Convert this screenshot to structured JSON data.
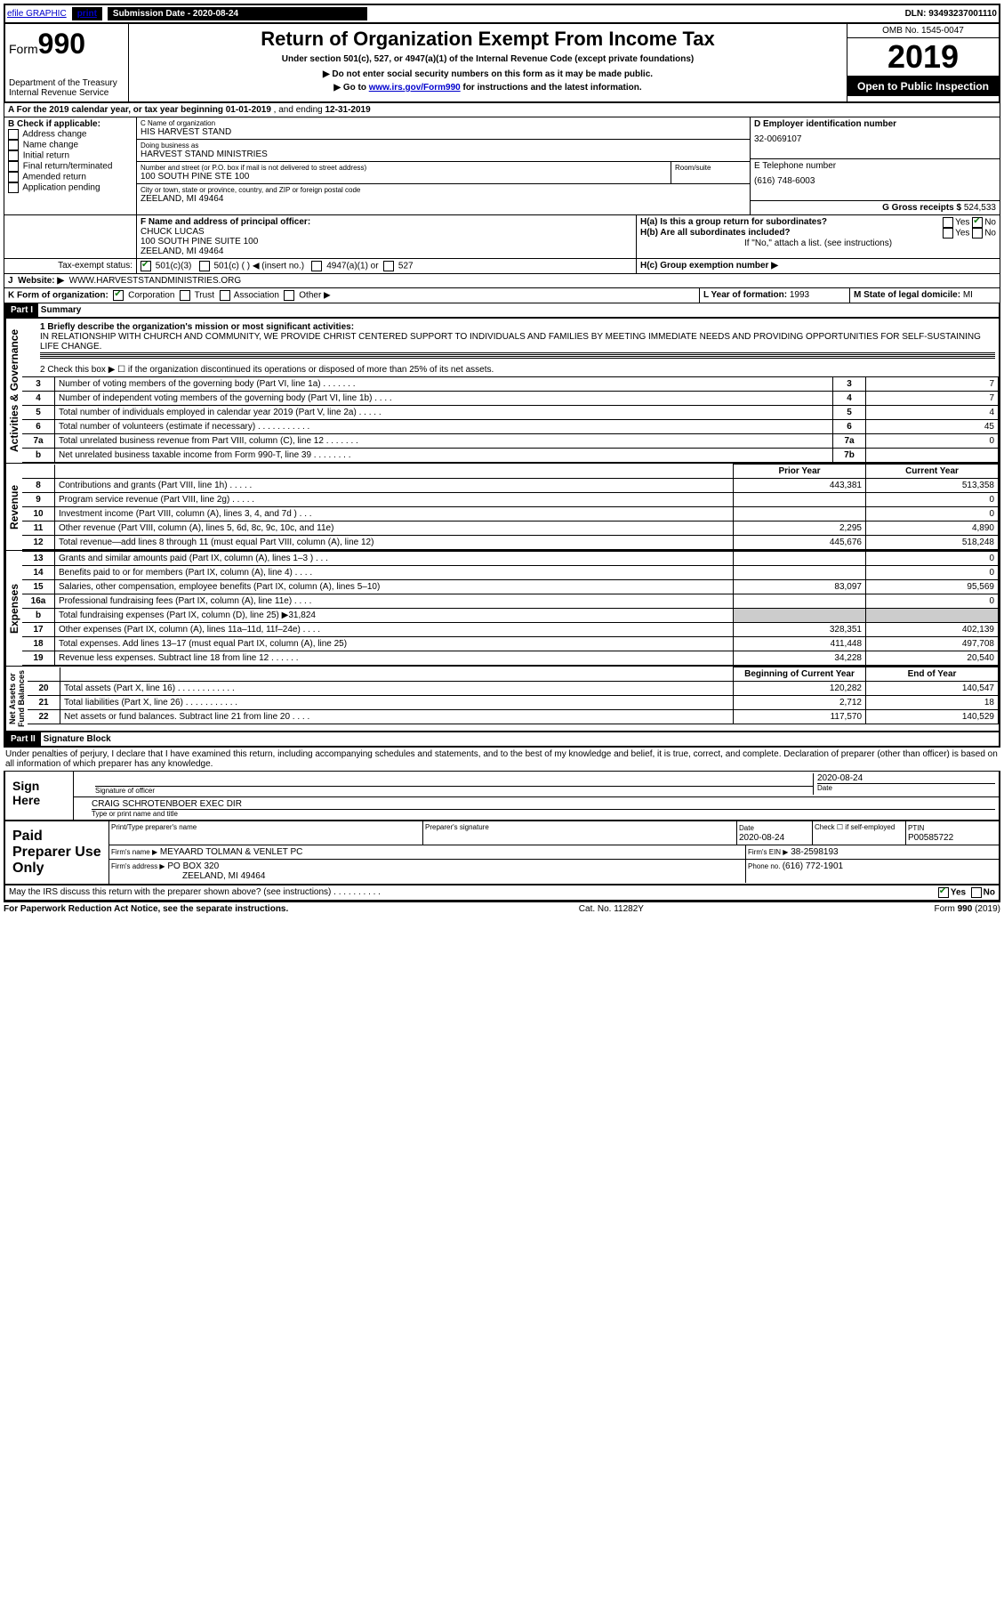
{
  "top": {
    "efile": "efile GRAPHIC",
    "print": "print",
    "sub_label": "Submission Date - 2020-08-24",
    "dln": "DLN: 93493237001110"
  },
  "header": {
    "form_label": "Form",
    "form_num": "990",
    "dept": "Department of the Treasury",
    "irs": "Internal Revenue Service",
    "title": "Return of Organization Exempt From Income Tax",
    "subtitle": "Under section 501(c), 527, or 4947(a)(1) of the Internal Revenue Code (except private foundations)",
    "note1": "▶ Do not enter social security numbers on this form as it may be made public.",
    "note2_pre": "▶ Go to ",
    "note2_link": "www.irs.gov/Form990",
    "note2_post": " for instructions and the latest information.",
    "omb": "OMB No. 1545-0047",
    "year": "2019",
    "inspect": "Open to Public Inspection"
  },
  "period": {
    "label_a": "A For the 2019 calendar year, or tax year beginning ",
    "begin": "01-01-2019",
    "mid": " , and ending ",
    "end": "12-31-2019"
  },
  "blockB": {
    "label": "B Check if applicable:",
    "opts": [
      "Address change",
      "Name change",
      "Initial return",
      "Final return/terminated",
      "Amended return",
      "Application pending"
    ]
  },
  "blockC": {
    "name_label": "C Name of organization",
    "name": "HIS HARVEST STAND",
    "dba_label": "Doing business as",
    "dba": "HARVEST STAND MINISTRIES",
    "addr_label": "Number and street (or P.O. box if mail is not delivered to street address)",
    "room_label": "Room/suite",
    "addr": "100 SOUTH PINE STE 100",
    "city_label": "City or town, state or province, country, and ZIP or foreign postal code",
    "city": "ZEELAND, MI  49464"
  },
  "blockD": {
    "label": "D Employer identification number",
    "val": "32-0069107"
  },
  "blockE": {
    "label": "E Telephone number",
    "val": "(616) 748-6003"
  },
  "blockG": {
    "label": "G Gross receipts $ ",
    "val": "524,533"
  },
  "blockF": {
    "label": "F  Name and address of principal officer:",
    "name": "CHUCK LUCAS",
    "addr1": "100 SOUTH PINE SUITE 100",
    "addr2": "ZEELAND, MI  49464"
  },
  "blockH": {
    "a": "H(a)  Is this a group return for subordinates?",
    "b": "H(b)  Are all subordinates included?",
    "b_note": "If \"No,\" attach a list. (see instructions)",
    "c": "H(c)  Group exemption number ▶"
  },
  "blockI": {
    "label": "Tax-exempt status:",
    "o1": "501(c)(3)",
    "o2": "501(c) (  ) ◀ (insert no.)",
    "o3": "4947(a)(1) or",
    "o4": "527"
  },
  "blockJ": {
    "label": "J",
    "web_label": "Website: ▶",
    "web": "WWW.HARVESTSTANDMINISTRIES.ORG"
  },
  "blockK": {
    "label": "K Form of organization:",
    "opts": [
      "Corporation",
      "Trust",
      "Association",
      "Other ▶"
    ]
  },
  "blockL": {
    "label": "L Year of formation: ",
    "val": "1993"
  },
  "blockM": {
    "label": "M State of legal domicile: ",
    "val": "MI"
  },
  "part1": {
    "header": "Part I",
    "title": "Summary",
    "line1_label": "1  Briefly describe the organization's mission or most significant activities:",
    "line1_text": "IN RELATIONSHIP WITH CHURCH AND COMMUNITY, WE PROVIDE CHRIST CENTERED SUPPORT TO INDIVIDUALS AND FAMILIES BY MEETING IMMEDIATE NEEDS AND PROVIDING OPPORTUNITIES FOR SELF-SUSTAINING LIFE CHANGE.",
    "line2": "2  Check this box ▶ ☐  if the organization discontinued its operations or disposed of more than 25% of its net assets."
  },
  "governance_rows": [
    {
      "n": "3",
      "label": "Number of voting members of the governing body (Part VI, line 1a)  .    .    .    .    .    .    .",
      "box": "3",
      "val": "7"
    },
    {
      "n": "4",
      "label": "Number of independent voting members of the governing body (Part VI, line 1b)  .    .    .    .",
      "box": "4",
      "val": "7"
    },
    {
      "n": "5",
      "label": "Total number of individuals employed in calendar year 2019 (Part V, line 2a)  .    .    .    .    .",
      "box": "5",
      "val": "4"
    },
    {
      "n": "6",
      "label": "Total number of volunteers (estimate if necessary)    .    .    .    .    .    .    .    .    .    .    .",
      "box": "6",
      "val": "45"
    },
    {
      "n": "7a",
      "label": "Total unrelated business revenue from Part VIII, column (C), line 12  .    .    .    .    .    .    .",
      "box": "7a",
      "val": "0"
    },
    {
      "n": "b",
      "label": "Net unrelated business taxable income from Form 990-T, line 39    .    .    .    .    .    .    .    .",
      "box": "7b",
      "val": ""
    }
  ],
  "col_headers": {
    "prior": "Prior Year",
    "current": "Current Year"
  },
  "revenue_rows": [
    {
      "n": "8",
      "label": "Contributions and grants (Part VIII, line 1h)  .    .    .    .    .",
      "prior": "443,381",
      "current": "513,358"
    },
    {
      "n": "9",
      "label": "Program service revenue (Part VIII, line 2g)   .    .    .    .    .",
      "prior": "",
      "current": "0"
    },
    {
      "n": "10",
      "label": "Investment income (Part VIII, column (A), lines 3, 4, and 7d )  .    .    .",
      "prior": "",
      "current": "0"
    },
    {
      "n": "11",
      "label": "Other revenue (Part VIII, column (A), lines 5, 6d, 8c, 9c, 10c, and 11e)",
      "prior": "2,295",
      "current": "4,890"
    },
    {
      "n": "12",
      "label": "Total revenue—add lines 8 through 11 (must equal Part VIII, column (A), line 12)",
      "prior": "445,676",
      "current": "518,248"
    }
  ],
  "expense_rows": [
    {
      "n": "13",
      "label": "Grants and similar amounts paid (Part IX, column (A), lines 1–3 )  .    .    .",
      "prior": "",
      "current": "0"
    },
    {
      "n": "14",
      "label": "Benefits paid to or for members (Part IX, column (A), line 4)  .    .    .    .",
      "prior": "",
      "current": "0"
    },
    {
      "n": "15",
      "label": "Salaries, other compensation, employee benefits (Part IX, column (A), lines 5–10)",
      "prior": "83,097",
      "current": "95,569"
    },
    {
      "n": "16a",
      "label": "Professional fundraising fees (Part IX, column (A), line 11e)  .    .    .    .",
      "prior": "",
      "current": "0"
    },
    {
      "n": "b",
      "label": "Total fundraising expenses (Part IX, column (D), line 25) ▶31,824",
      "prior": "shaded",
      "current": "shaded"
    },
    {
      "n": "17",
      "label": "Other expenses (Part IX, column (A), lines 11a–11d, 11f–24e)  .    .    .    .",
      "prior": "328,351",
      "current": "402,139"
    },
    {
      "n": "18",
      "label": "Total expenses. Add lines 13–17 (must equal Part IX, column (A), line 25)",
      "prior": "411,448",
      "current": "497,708"
    },
    {
      "n": "19",
      "label": "Revenue less expenses. Subtract line 18 from line 12  .    .    .    .    .    .",
      "prior": "34,228",
      "current": "20,540"
    }
  ],
  "net_headers": {
    "begin": "Beginning of Current Year",
    "end": "End of Year"
  },
  "net_rows": [
    {
      "n": "20",
      "label": "Total assets (Part X, line 16)  .    .    .    .    .    .    .    .    .    .    .    .",
      "prior": "120,282",
      "current": "140,547"
    },
    {
      "n": "21",
      "label": "Total liabilities (Part X, line 26)  .    .    .    .    .    .    .    .    .    .    .",
      "prior": "2,712",
      "current": "18"
    },
    {
      "n": "22",
      "label": "Net assets or fund balances. Subtract line 21 from line 20  .    .    .    .",
      "prior": "117,570",
      "current": "140,529"
    }
  ],
  "part2": {
    "header": "Part II",
    "title": "Signature Block",
    "perjury": "Under penalties of perjury, I declare that I have examined this return, including accompanying schedules and statements, and to the best of my knowledge and belief, it is true, correct, and complete. Declaration of preparer (other than officer) is based on all information of which preparer has any knowledge."
  },
  "sign": {
    "here": "Sign Here",
    "sig_label": "Signature of officer",
    "date_label": "Date",
    "date": "2020-08-24",
    "name": "CRAIG SCHROTENBOER  EXEC DIR",
    "name_label": "Type or print name and title"
  },
  "preparer": {
    "label": "Paid Preparer Use Only",
    "h1": "Print/Type preparer's name",
    "h2": "Preparer's signature",
    "h3": "Date",
    "date": "2020-08-24",
    "h4": "Check ☐ if self-employed",
    "h5": "PTIN",
    "ptin": "P00585722",
    "firm_name_label": "Firm's name    ▶",
    "firm_name": "MEYAARD TOLMAN & VENLET PC",
    "firm_ein_label": "Firm's EIN ▶",
    "firm_ein": "38-2598193",
    "firm_addr_label": "Firm's address ▶",
    "firm_addr1": "PO BOX 320",
    "firm_addr2": "ZEELAND, MI  49464",
    "phone_label": "Phone no. ",
    "phone": "(616) 772-1901"
  },
  "discuss": {
    "q": "May the IRS discuss this return with the preparer shown above? (see instructions)    .    .    .    .    .    .    .    .    .    .",
    "yes": "Yes",
    "no": "No"
  },
  "footer": {
    "left": "For Paperwork Reduction Act Notice, see the separate instructions.",
    "mid": "Cat. No. 11282Y",
    "right": "Form 990 (2019)"
  }
}
